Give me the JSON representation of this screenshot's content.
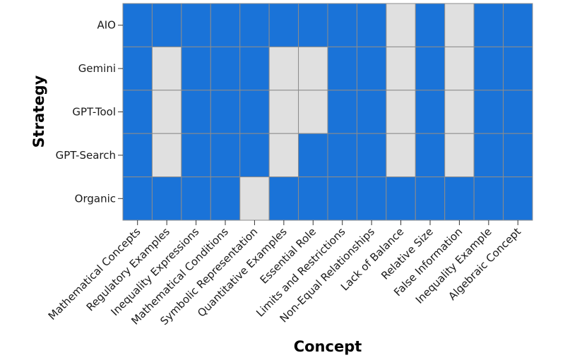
{
  "chart_data": {
    "type": "heatmap",
    "xlabel": "Concept",
    "ylabel": "Strategy",
    "x_categories": [
      "Mathematical Concepts",
      "Regulatory Examples",
      "Inequality Expressions",
      "Mathematical Conditions",
      "Symbolic Representation",
      "Quantitative Examples",
      "Essential Role",
      "Limits and Restrictions",
      "Non-Equal Relationships",
      "Lack of Balance",
      "Relative Size",
      "False Information",
      "Inequality Example",
      "Algebraic Concept"
    ],
    "y_categories": [
      "AIO",
      "Gemini",
      "GPT-Tool",
      "GPT-Search",
      "Organic"
    ],
    "values": [
      [
        1,
        1,
        1,
        1,
        1,
        1,
        1,
        1,
        1,
        0,
        1,
        0,
        1,
        1
      ],
      [
        1,
        0,
        1,
        1,
        1,
        0,
        0,
        1,
        1,
        0,
        1,
        0,
        1,
        1
      ],
      [
        1,
        0,
        1,
        1,
        1,
        0,
        0,
        1,
        1,
        0,
        1,
        0,
        1,
        1
      ],
      [
        1,
        0,
        1,
        1,
        1,
        0,
        1,
        1,
        1,
        0,
        1,
        0,
        1,
        1
      ],
      [
        1,
        1,
        1,
        1,
        0,
        1,
        1,
        1,
        1,
        1,
        1,
        1,
        1,
        1
      ]
    ],
    "colors": {
      "1": "#1a73d8",
      "0": "#e0e0e0",
      "gridline": "#8c8c8c"
    },
    "grid": true,
    "legend": false
  }
}
